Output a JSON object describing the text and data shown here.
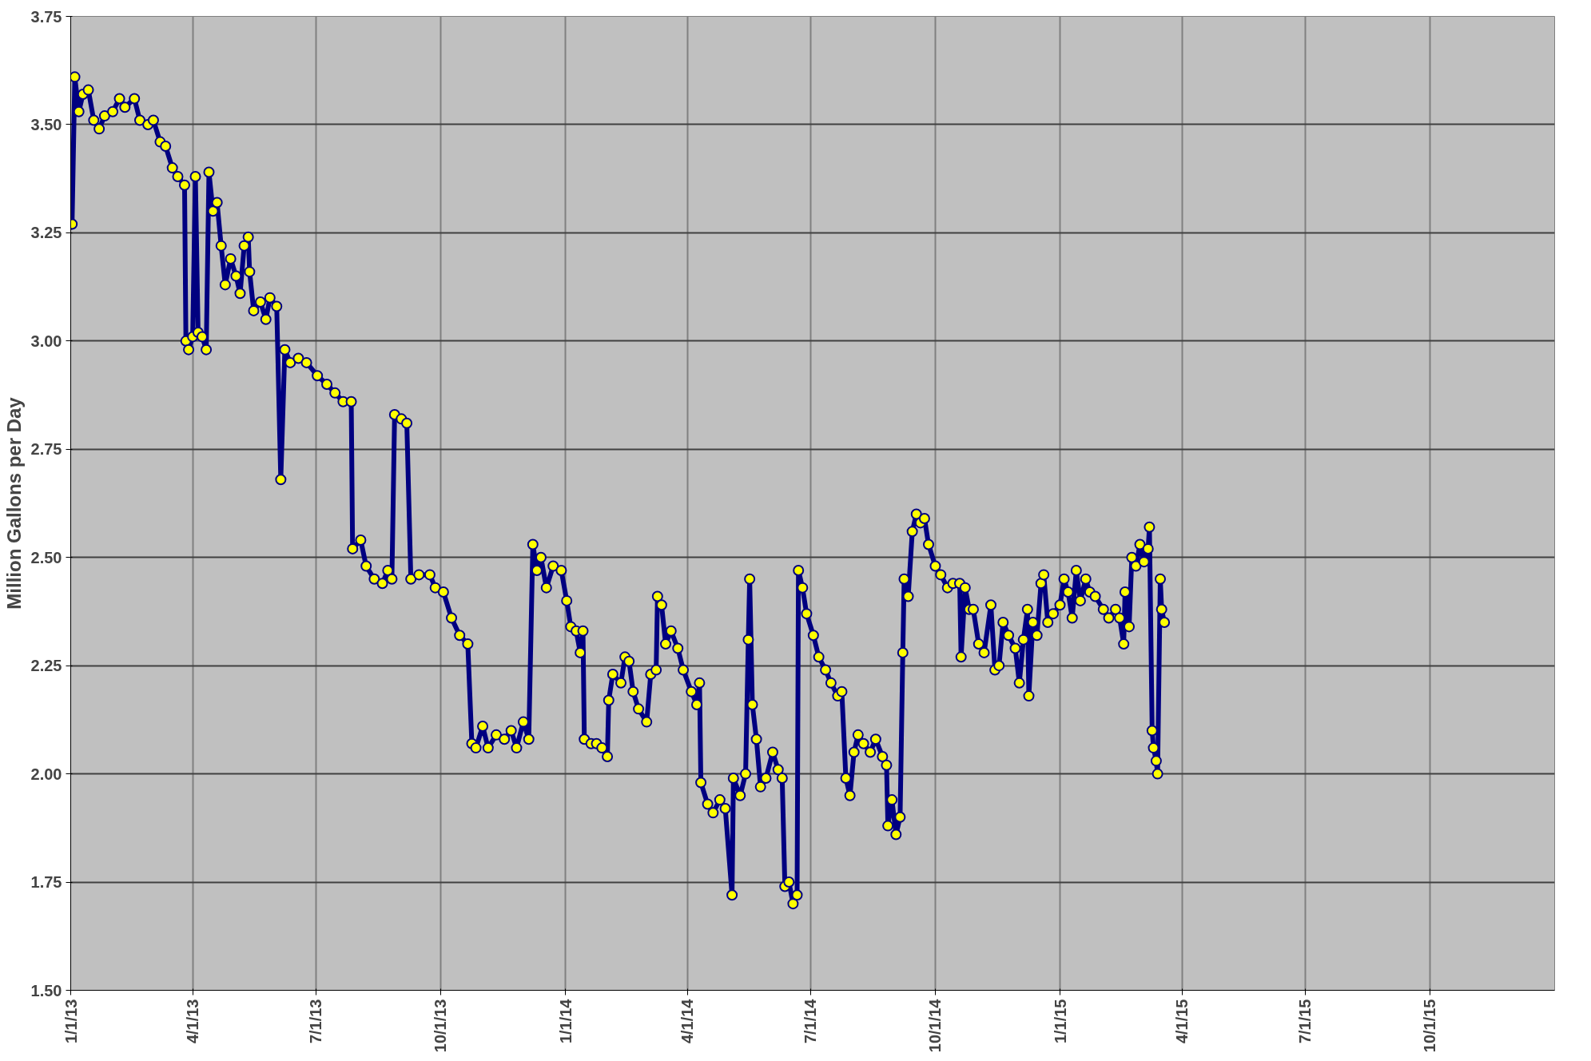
{
  "chart_data": {
    "type": "line",
    "ylabel": "Million Gallons per Day",
    "grid": true,
    "marker": "circle",
    "line_style": "solid",
    "xlim": [
      "2013-01-01",
      "2016-01-01"
    ],
    "xticks": [
      {
        "value": "2013-01-01",
        "label": "1/1/13"
      },
      {
        "value": "2013-04-01",
        "label": "4/1/13"
      },
      {
        "value": "2013-07-01",
        "label": "7/1/13"
      },
      {
        "value": "2013-10-01",
        "label": "10/1/13"
      },
      {
        "value": "2014-01-01",
        "label": "1/1/14"
      },
      {
        "value": "2014-04-01",
        "label": "4/1/14"
      },
      {
        "value": "2014-07-01",
        "label": "7/1/14"
      },
      {
        "value": "2014-10-01",
        "label": "10/1/14"
      },
      {
        "value": "2015-01-01",
        "label": "1/1/15"
      },
      {
        "value": "2015-04-01",
        "label": "4/1/15"
      },
      {
        "value": "2015-07-01",
        "label": "7/1/15"
      },
      {
        "value": "2015-10-01",
        "label": "10/1/15"
      }
    ],
    "ylim": [
      1.5,
      3.75
    ],
    "yticks": [
      {
        "value": 1.5,
        "label": "1.50"
      },
      {
        "value": 1.75,
        "label": "1.75"
      },
      {
        "value": 2.0,
        "label": "2.00"
      },
      {
        "value": 2.25,
        "label": "2.25"
      },
      {
        "value": 2.5,
        "label": "2.50"
      },
      {
        "value": 2.75,
        "label": "2.75"
      },
      {
        "value": 3.0,
        "label": "3.00"
      },
      {
        "value": 3.25,
        "label": "3.25"
      },
      {
        "value": 3.5,
        "label": "3.50"
      },
      {
        "value": 3.75,
        "label": "3.75"
      }
    ],
    "x": [
      "2013-01-01",
      "2013-01-02",
      "2013-01-04",
      "2013-01-07",
      "2013-01-10",
      "2013-01-14",
      "2013-01-18",
      "2013-01-22",
      "2013-01-26",
      "2013-02-01",
      "2013-02-06",
      "2013-02-10",
      "2013-02-17",
      "2013-02-21",
      "2013-02-27",
      "2013-03-03",
      "2013-03-08",
      "2013-03-12",
      "2013-03-17",
      "2013-03-21",
      "2013-03-26",
      "2013-03-27",
      "2013-03-29",
      "2013-04-01",
      "2013-04-03",
      "2013-04-05",
      "2013-04-08",
      "2013-04-11",
      "2013-04-13",
      "2013-04-16",
      "2013-04-19",
      "2013-04-22",
      "2013-04-25",
      "2013-04-29",
      "2013-05-03",
      "2013-05-06",
      "2013-05-09",
      "2013-05-12",
      "2013-05-13",
      "2013-05-16",
      "2013-05-21",
      "2013-05-25",
      "2013-05-28",
      "2013-06-02",
      "2013-06-05",
      "2013-06-08",
      "2013-06-12",
      "2013-06-18",
      "2013-06-24",
      "2013-07-02",
      "2013-07-09",
      "2013-07-15",
      "2013-07-21",
      "2013-07-27",
      "2013-07-28",
      "2013-08-03",
      "2013-08-07",
      "2013-08-13",
      "2013-08-19",
      "2013-08-23",
      "2013-08-26",
      "2013-08-28",
      "2013-09-02",
      "2013-09-06",
      "2013-09-09",
      "2013-09-15",
      "2013-09-23",
      "2013-09-27",
      "2013-10-03",
      "2013-10-09",
      "2013-10-15",
      "2013-10-21",
      "2013-10-24",
      "2013-10-27",
      "2013-11-01",
      "2013-11-05",
      "2013-11-11",
      "2013-11-17",
      "2013-11-22",
      "2013-11-26",
      "2013-12-01",
      "2013-12-05",
      "2013-12-08",
      "2013-12-11",
      "2013-12-14",
      "2013-12-18",
      "2013-12-23",
      "2013-12-29",
      "2014-01-02",
      "2014-01-05",
      "2014-01-09",
      "2014-01-12",
      "2014-01-14",
      "2014-01-15",
      "2014-01-20",
      "2014-01-24",
      "2014-01-28",
      "2014-02-01",
      "2014-02-02",
      "2014-02-05",
      "2014-02-11",
      "2014-02-14",
      "2014-02-17",
      "2014-02-20",
      "2014-02-24",
      "2014-03-02",
      "2014-03-05",
      "2014-03-09",
      "2014-03-10",
      "2014-03-13",
      "2014-03-16",
      "2014-03-20",
      "2014-03-25",
      "2014-03-29",
      "2014-04-04",
      "2014-04-08",
      "2014-04-10",
      "2014-04-11",
      "2014-04-16",
      "2014-04-20",
      "2014-04-25",
      "2014-04-29",
      "2014-05-04",
      "2014-05-05",
      "2014-05-10",
      "2014-05-14",
      "2014-05-16",
      "2014-05-17",
      "2014-05-19",
      "2014-05-22",
      "2014-05-25",
      "2014-05-29",
      "2014-06-03",
      "2014-06-07",
      "2014-06-10",
      "2014-06-12",
      "2014-06-15",
      "2014-06-18",
      "2014-06-21",
      "2014-06-22",
      "2014-06-25",
      "2014-06-28",
      "2014-07-03",
      "2014-07-07",
      "2014-07-12",
      "2014-07-16",
      "2014-07-21",
      "2014-07-24",
      "2014-07-27",
      "2014-07-30",
      "2014-08-02",
      "2014-08-05",
      "2014-08-09",
      "2014-08-14",
      "2014-08-18",
      "2014-08-23",
      "2014-08-26",
      "2014-08-27",
      "2014-08-30",
      "2014-09-02",
      "2014-09-05",
      "2014-09-07",
      "2014-09-08",
      "2014-09-11",
      "2014-09-14",
      "2014-09-17",
      "2014-09-20",
      "2014-09-23",
      "2014-09-26",
      "2014-10-01",
      "2014-10-05",
      "2014-10-10",
      "2014-10-14",
      "2014-10-19",
      "2014-10-20",
      "2014-10-23",
      "2014-10-26",
      "2014-10-29",
      "2014-11-02",
      "2014-11-06",
      "2014-11-11",
      "2014-11-14",
      "2014-11-17",
      "2014-11-20",
      "2014-11-24",
      "2014-11-29",
      "2014-12-02",
      "2014-12-05",
      "2014-12-08",
      "2014-12-09",
      "2014-12-12",
      "2014-12-15",
      "2014-12-18",
      "2014-12-20",
      "2014-12-23",
      "2014-12-27",
      "2015-01-01",
      "2015-01-04",
      "2015-01-07",
      "2015-01-10",
      "2015-01-13",
      "2015-01-16",
      "2015-01-20",
      "2015-01-23",
      "2015-01-27",
      "2015-02-02",
      "2015-02-06",
      "2015-02-11",
      "2015-02-14",
      "2015-02-17",
      "2015-02-18",
      "2015-02-21",
      "2015-02-23",
      "2015-02-26",
      "2015-03-01",
      "2015-03-04",
      "2015-03-07",
      "2015-03-08",
      "2015-03-10",
      "2015-03-11",
      "2015-03-13",
      "2015-03-14",
      "2015-03-16",
      "2015-03-17",
      "2015-03-19"
    ],
    "series": [
      {
        "color": "#000080",
        "values": [
          3.27,
          3.27,
          3.61,
          3.53,
          3.57,
          3.58,
          3.51,
          3.49,
          3.52,
          3.53,
          3.56,
          3.54,
          3.56,
          3.51,
          3.5,
          3.51,
          3.46,
          3.45,
          3.4,
          3.38,
          3.36,
          3.0,
          2.98,
          3.01,
          3.38,
          3.02,
          3.01,
          2.98,
          3.39,
          3.3,
          3.32,
          3.22,
          3.13,
          3.19,
          3.15,
          3.11,
          3.22,
          3.24,
          3.16,
          3.07,
          3.09,
          3.05,
          3.1,
          3.08,
          2.68,
          2.98,
          2.95,
          2.96,
          2.95,
          2.92,
          2.9,
          2.88,
          2.86,
          2.86,
          2.52,
          2.54,
          2.48,
          2.45,
          2.44,
          2.47,
          2.45,
          2.83,
          2.82,
          2.81,
          2.45,
          2.46,
          2.46,
          2.43,
          2.42,
          2.36,
          2.32,
          2.3,
          2.07,
          2.06,
          2.11,
          2.06,
          2.09,
          2.08,
          2.1,
          2.06,
          2.12,
          2.08,
          2.53,
          2.47,
          2.5,
          2.43,
          2.48,
          2.47,
          2.4,
          2.34,
          2.33,
          2.28,
          2.33,
          2.08,
          2.07,
          2.07,
          2.06,
          2.04,
          2.17,
          2.23,
          2.21,
          2.27,
          2.26,
          2.19,
          2.15,
          2.12,
          2.23,
          2.24,
          2.41,
          2.39,
          2.3,
          2.33,
          2.29,
          2.24,
          2.19,
          2.16,
          2.21,
          1.98,
          1.93,
          1.91,
          1.94,
          1.92,
          1.72,
          1.99,
          1.95,
          2.0,
          2.31,
          2.45,
          2.16,
          2.08,
          1.97,
          1.99,
          2.05,
          2.01,
          1.99,
          1.74,
          1.75,
          1.7,
          1.72,
          2.47,
          2.43,
          2.37,
          2.32,
          2.27,
          2.24,
          2.21,
          2.18,
          2.19,
          1.99,
          1.95,
          2.05,
          2.09,
          2.07,
          2.05,
          2.08,
          2.04,
          2.02,
          1.88,
          1.94,
          1.86,
          1.9,
          2.28,
          2.45,
          2.41,
          2.56,
          2.6,
          2.58,
          2.59,
          2.53,
          2.48,
          2.46,
          2.43,
          2.44,
          2.44,
          2.27,
          2.43,
          2.38,
          2.38,
          2.3,
          2.28,
          2.39,
          2.24,
          2.25,
          2.35,
          2.32,
          2.29,
          2.21,
          2.31,
          2.38,
          2.18,
          2.35,
          2.32,
          2.44,
          2.46,
          2.35,
          2.37,
          2.39,
          2.45,
          2.42,
          2.36,
          2.47,
          2.4,
          2.45,
          2.42,
          2.41,
          2.38,
          2.36,
          2.38,
          2.36,
          2.3,
          2.42,
          2.34,
          2.5,
          2.48,
          2.53,
          2.49,
          2.52,
          2.57,
          2.1,
          2.06,
          2.03,
          2.0,
          2.45,
          2.38,
          2.35
        ]
      }
    ]
  }
}
